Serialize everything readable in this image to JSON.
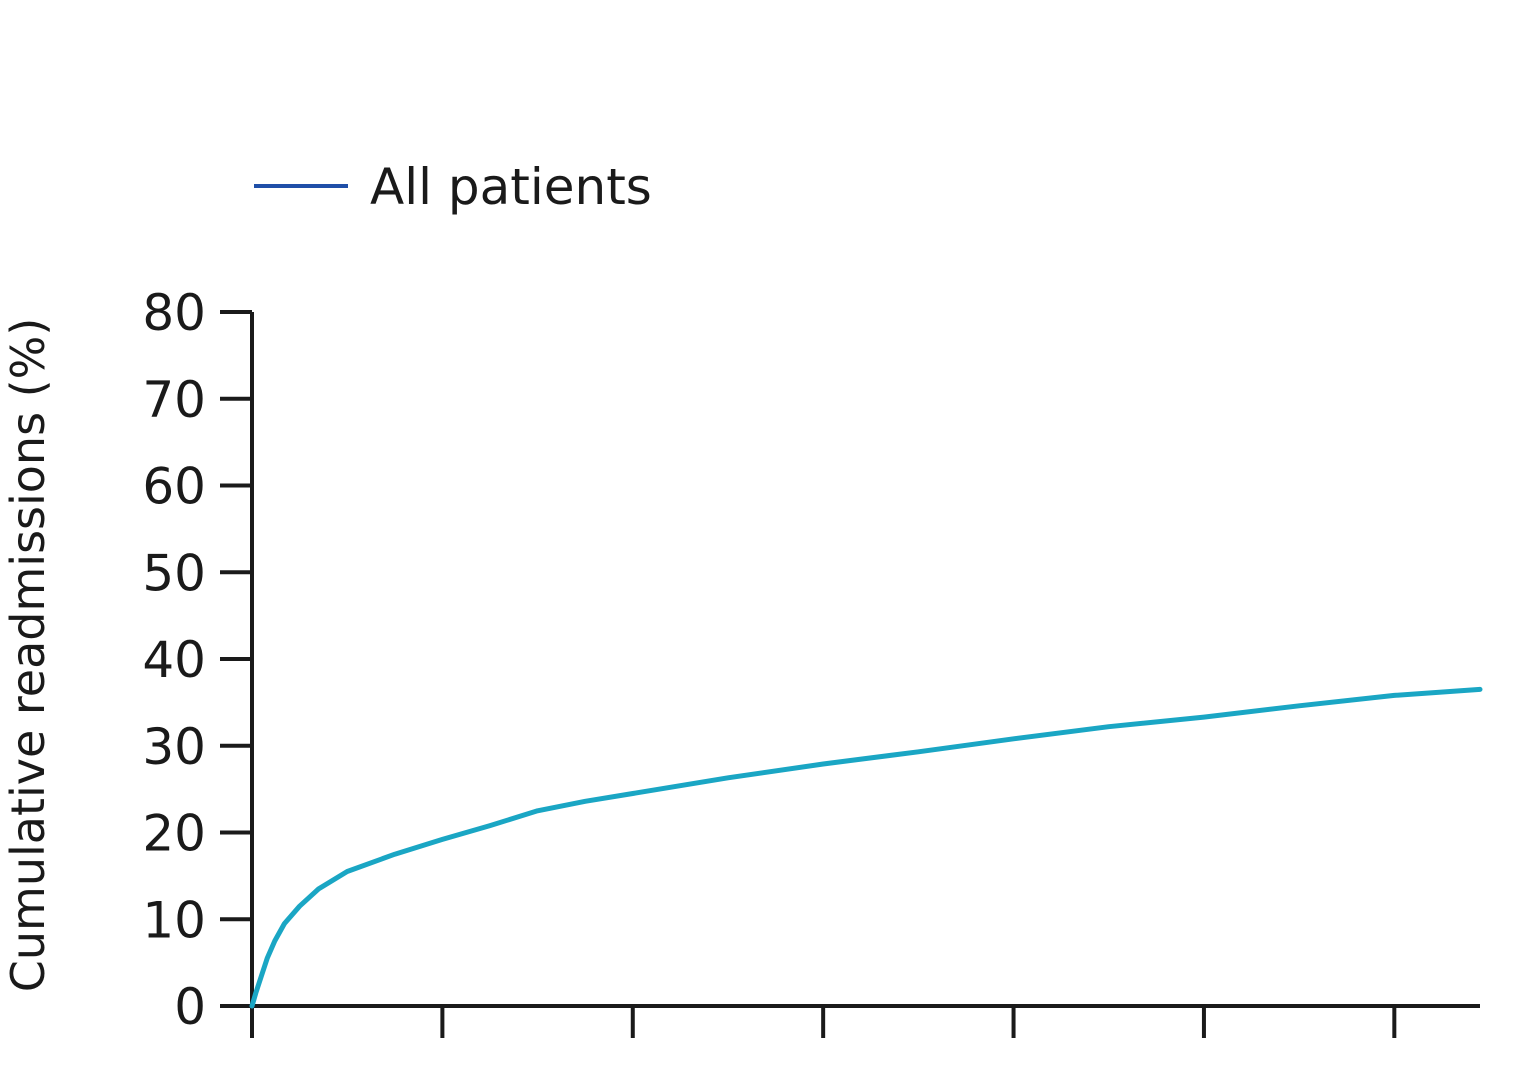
{
  "chart_data": {
    "type": "line",
    "title": "",
    "xlabel": "",
    "ylabel": "Cumulative readmissions (%)",
    "ylim": [
      0,
      80
    ],
    "yticks": [
      0,
      10,
      20,
      30,
      40,
      50,
      60,
      70,
      80
    ],
    "xlim": [
      0,
      6.45
    ],
    "xticks": [
      0,
      1,
      2,
      3,
      4,
      5,
      6
    ],
    "grid": false,
    "legend_position": "top-left",
    "colors": {
      "series": "#1aa6c4",
      "legend_line": "#1f4fa8",
      "axis": "#1a1a1a"
    },
    "series": [
      {
        "name": "All patients",
        "x": [
          0,
          0.02,
          0.05,
          0.08,
          0.12,
          0.17,
          0.25,
          0.35,
          0.5,
          0.75,
          1.0,
          1.25,
          1.5,
          1.75,
          2.0,
          2.5,
          3.0,
          3.5,
          4.0,
          4.5,
          5.0,
          5.5,
          6.0,
          6.45
        ],
        "y": [
          0,
          1.5,
          3.5,
          5.5,
          7.5,
          9.5,
          11.5,
          13.5,
          15.5,
          17.5,
          19.2,
          20.8,
          22.5,
          23.6,
          24.5,
          26.3,
          27.9,
          29.3,
          30.8,
          32.2,
          33.3,
          34.6,
          35.8,
          36.5
        ]
      }
    ]
  }
}
